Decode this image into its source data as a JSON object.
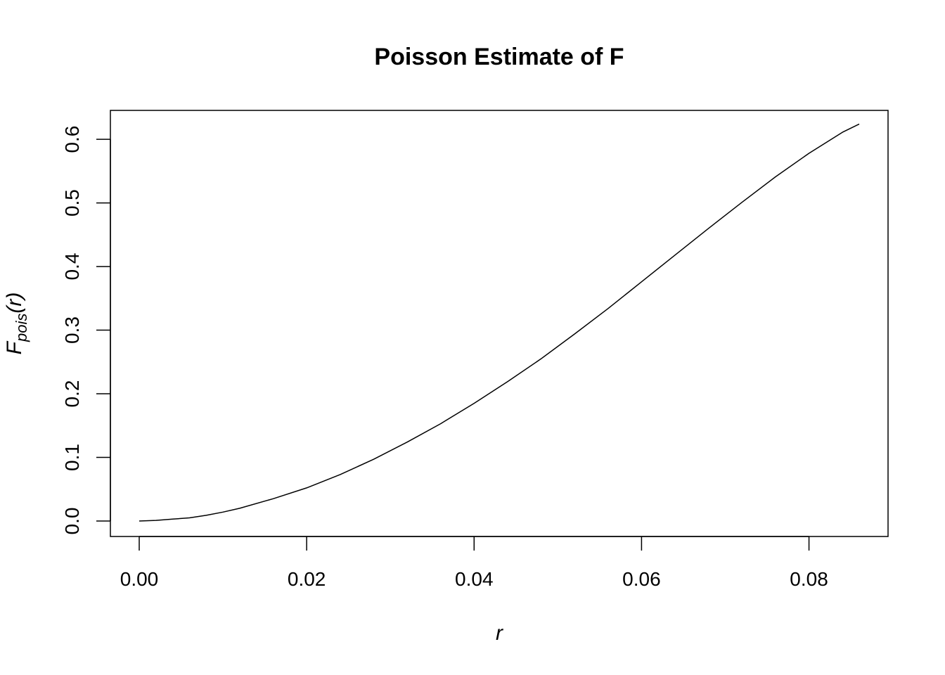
{
  "chart_data": {
    "type": "line",
    "title": "Poisson Estimate of F",
    "xlabel": "r",
    "ylabel": {
      "main": "F",
      "subscript": "pois",
      "argument": "(r)"
    },
    "xlim": [
      0,
      0.086
    ],
    "ylim": [
      0,
      0.62
    ],
    "x_ticks": [
      "0.00",
      "0.02",
      "0.04",
      "0.06",
      "0.08"
    ],
    "y_ticks": [
      "0.0",
      "0.1",
      "0.2",
      "0.3",
      "0.4",
      "0.5",
      "0.6"
    ],
    "grid": false,
    "legend": "none",
    "series": [
      {
        "x": [
          0,
          0.002,
          0.004,
          0.006,
          0.008,
          0.01,
          0.012,
          0.016,
          0.02,
          0.024,
          0.028,
          0.032,
          0.036,
          0.04,
          0.044,
          0.048,
          0.052,
          0.056,
          0.06,
          0.064,
          0.068,
          0.072,
          0.076,
          0.08,
          0.084,
          0.086
        ],
        "y": [
          0,
          0.001,
          0.003,
          0.005,
          0.009,
          0.014,
          0.02,
          0.035,
          0.052,
          0.073,
          0.097,
          0.124,
          0.153,
          0.185,
          0.219,
          0.255,
          0.294,
          0.334,
          0.376,
          0.418,
          0.46,
          0.501,
          0.541,
          0.578,
          0.611,
          0.624
        ],
        "color": "#000000"
      }
    ]
  }
}
